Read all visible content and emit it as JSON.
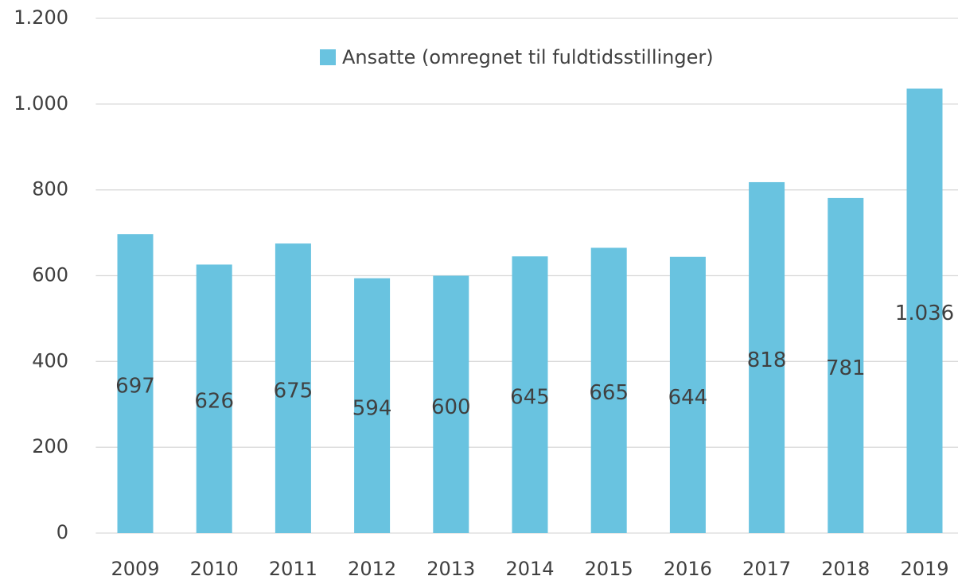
{
  "chart_data": {
    "type": "bar",
    "categories": [
      "2009",
      "2010",
      "2011",
      "2012",
      "2013",
      "2014",
      "2015",
      "2016",
      "2017",
      "2018",
      "2019"
    ],
    "series": [
      {
        "name": "Ansatte (omregnet til fuldtidsstillinger)",
        "color": "#69c3e0",
        "values": [
          697,
          626,
          675,
          594,
          600,
          645,
          665,
          644,
          818,
          781,
          1036
        ],
        "value_labels": [
          "697",
          "626",
          "675",
          "594",
          "600",
          "645",
          "665",
          "644",
          "818",
          "781",
          "1.036"
        ]
      }
    ],
    "ylim": [
      0,
      1200
    ],
    "yticks": [
      0,
      200,
      400,
      600,
      800,
      {
        "value": 1000,
        "label": "1.000"
      },
      {
        "value": 1200,
        "label": "1.200"
      }
    ],
    "grid": true,
    "legend": "top"
  }
}
